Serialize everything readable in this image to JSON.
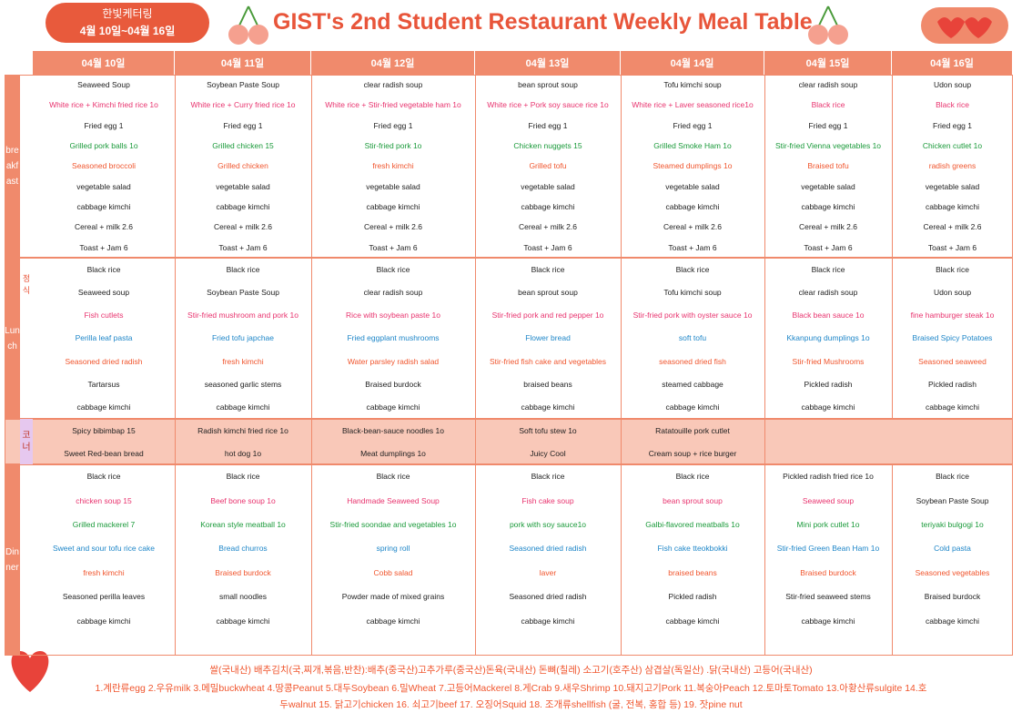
{
  "header": {
    "caterer": "한빛케터링",
    "period": "4월 10일~04월 16일",
    "title": "GIST's 2nd Student Restaurant Weekly Meal Table"
  },
  "days": [
    "04월 10일",
    "04월 11일",
    "04월 12일",
    "04월 13일",
    "04월 14일",
    "04월 15일",
    "04월 16일"
  ],
  "sections": [
    {
      "label": "breakfast",
      "rows": [
        {
          "color": "#222222",
          "items": [
            "Seaweed Soup",
            "Soybean Paste Soup",
            "clear radish soup",
            "bean sprout soup",
            "Tofu kimchi soup",
            "clear radish soup",
            "Udon soup"
          ]
        },
        {
          "color": "#e8336e",
          "items": [
            "White rice + Kimchi fried rice 1o",
            "White rice + Curry fried rice 1o",
            "White rice + Stir-fried vegetable ham 1o",
            "White rice + Pork soy sauce rice 1o",
            "White rice + Laver seasoned rice1o",
            "Black rice",
            "Black rice"
          ]
        },
        {
          "color": "#222222",
          "items": [
            "Fried egg 1",
            "Fried egg 1",
            "Fried egg 1",
            "Fried egg 1",
            "Fried egg 1",
            "Fried egg 1",
            "Fried egg 1"
          ]
        },
        {
          "color": "#1a9a3a",
          "items": [
            "Grilled pork balls 1o",
            "Grilled chicken 15",
            "Stir-fried pork 1o",
            "Chicken nuggets 15",
            "Grilled Smoke Ham 1o",
            "Stir-fried Vienna vegetables 1o",
            "Chicken cutlet 1o"
          ]
        },
        {
          "color": "#f0552d",
          "items": [
            "Seasoned broccoli",
            "Grilled chicken",
            "fresh kimchi",
            "Grilled tofu",
            "Steamed dumplings 1o",
            "Braised tofu",
            "radish greens"
          ]
        },
        {
          "color": "#222222",
          "items": [
            "vegetable salad",
            "vegetable salad",
            "vegetable salad",
            "vegetable salad",
            "vegetable salad",
            "vegetable salad",
            "vegetable salad"
          ]
        },
        {
          "color": "#222222",
          "items": [
            "cabbage kimchi",
            "cabbage kimchi",
            "cabbage kimchi",
            "cabbage kimchi",
            "cabbage kimchi",
            "cabbage kimchi",
            "cabbage kimchi"
          ]
        },
        {
          "color": "#222222",
          "items": [
            "Cereal + milk 2.6",
            "Cereal + milk 2.6",
            "Cereal + milk 2.6",
            "Cereal + milk 2.6",
            "Cereal + milk 2.6",
            "Cereal + milk 2.6",
            "Cereal + milk 2.6"
          ]
        },
        {
          "color": "#222222",
          "items": [
            "Toast + Jam 6",
            "Toast + Jam 6",
            "Toast + Jam 6",
            "Toast + Jam 6",
            "Toast + Jam 6",
            "Toast + Jam 6",
            "Toast + Jam 6"
          ]
        }
      ]
    },
    {
      "label": "Lunch",
      "sublabel": "정식",
      "rows": [
        {
          "color": "#222222",
          "items": [
            "Black rice",
            "Black rice",
            "Black rice",
            "Black rice",
            "Black rice",
            "Black rice",
            "Black rice"
          ]
        },
        {
          "color": "#222222",
          "items": [
            "Seaweed soup",
            "Soybean Paste Soup",
            "clear radish soup",
            "bean sprout soup",
            "Tofu kimchi soup",
            "clear radish soup",
            "Udon soup"
          ]
        },
        {
          "color": "#e8336e",
          "items": [
            "Fish cutlets",
            "Stir-fried mushroom and pork 1o",
            "Rice with soybean paste 1o",
            "Stir-fried pork and red pepper 1o",
            "Stir-fried pork with oyster sauce 1o",
            "Black bean sauce 1o",
            "fine hamburger steak 1o"
          ]
        },
        {
          "color": "#1e86c8",
          "items": [
            "Perilla leaf pasta",
            "Fried tofu japchae",
            "Fried eggplant mushrooms",
            "Flower bread",
            "soft tofu",
            "Kkanpung dumplings 1o",
            "Braised Spicy Potatoes"
          ]
        },
        {
          "color": "#f0552d",
          "items": [
            "Seasoned dried radish",
            "fresh kimchi",
            "Water parsley radish salad",
            "Stir-fried fish cake and vegetables",
            "seasoned dried fish",
            "Stir-fried Mushrooms",
            "Seasoned seaweed"
          ]
        },
        {
          "color": "#222222",
          "items": [
            "Tartarsus",
            "seasoned garlic stems",
            "Braised burdock",
            "braised beans",
            "steamed cabbage",
            "Pickled radish",
            "Pickled radish"
          ]
        },
        {
          "color": "#222222",
          "items": [
            "cabbage kimchi",
            "cabbage kimchi",
            "cabbage kimchi",
            "cabbage kimchi",
            "cabbage kimchi",
            "cabbage kimchi",
            "cabbage kimchi"
          ]
        }
      ]
    },
    {
      "label": "코너",
      "rows": [
        {
          "color": "#222222",
          "items": [
            "Spicy bibimbap 15",
            "Radish kimchi fried rice 1o",
            "Black-bean-sauce noodles 1o",
            "Soft tofu stew 1o",
            "Ratatouille pork cutlet"
          ]
        },
        {
          "color": "#222222",
          "items": [
            "Sweet Red-bean bread",
            "hot dog 1o",
            "Meat dumplings 1o",
            "Juicy Cool",
            "Cream soup + rice burger"
          ]
        }
      ]
    },
    {
      "label": "Dinner",
      "rows": [
        {
          "color": "#222222",
          "items": [
            "Black rice",
            "Black rice",
            "Black rice",
            "Black rice",
            "Black rice",
            "Pickled radish fried rice 1o",
            "Black rice"
          ]
        },
        {
          "color": "#e8336e",
          "items": [
            "chicken soup 15",
            "Beef bone soup 1o",
            "Handmade Seaweed Soup",
            "Fish cake soup",
            "bean sprout soup",
            "Seaweed soup",
            {
              "text": "Soybean Paste Soup",
              "color": "#222222"
            }
          ]
        },
        {
          "color": "#1a9a3a",
          "items": [
            "Grilled mackerel 7",
            "Korean style meatball 1o",
            "Stir-fried soondae and vegetables 1o",
            "pork with soy sauce1o",
            "Galbi-flavored meatballs 1o",
            "Mini pork cutlet 1o",
            "teriyaki bulgogi 1o"
          ]
        },
        {
          "color": "#1e86c8",
          "items": [
            "Sweet and sour tofu rice cake",
            "Bread churros",
            "spring roll",
            "Seasoned dried radish",
            "Fish cake tteokbokki",
            "Stir-fried Green Bean Ham 1o",
            "Cold pasta"
          ]
        },
        {
          "color": "#f0552d",
          "items": [
            "fresh kimchi",
            "Braised burdock",
            "Cobb salad",
            "laver",
            "braised beans",
            "Braised burdock",
            "Seasoned vegetables"
          ]
        },
        {
          "color": "#222222",
          "items": [
            "Seasoned perilla leaves",
            "small noodles",
            "Powder made of mixed grains",
            "Seasoned dried radish",
            "Pickled radish",
            "Stir-fried seaweed stems",
            "Braised burdock"
          ]
        },
        {
          "color": "#222222",
          "items": [
            "cabbage kimchi",
            "cabbage kimchi",
            "cabbage kimchi",
            "cabbage kimchi",
            "cabbage kimchi",
            "cabbage kimchi",
            "cabbage kimchi"
          ]
        }
      ]
    }
  ],
  "footer": {
    "origin": "쌀(국내산) 배추김치(국,찌개,볶음,반찬):배추(중국산)고추가루(중국산)돈육(국내산) 돈뼈(칠레) 소고기(호주산) 삼겹살(독일산) .닭(국내산) 고등어(국내산)",
    "allergens": [
      "1.계란류egg 2.우유milk 3.메밀buckwheat 4.땅콩Peanut 5.대두Soybean 6.밀Wheat 7.고등어Mackerel 8.게Crab 9.새우Shrimp 10.돼지고기Pork 11.복숭아Peach 12.토마토Tomato 13.아황산류sulgite 14.호",
      "두walnut 15. 닭고기chicken 16. 쇠고기beef 17. 오징어Squid 18. 조개류shellfish (굴, 전복, 홍합 등) 19. 잣pine nut"
    ]
  }
}
